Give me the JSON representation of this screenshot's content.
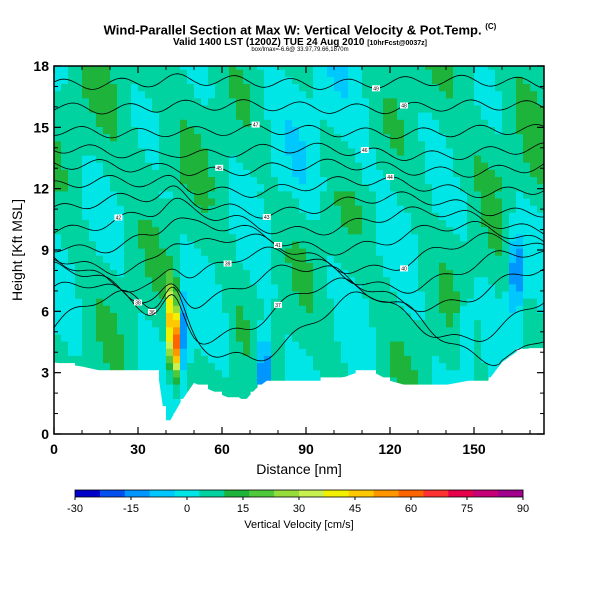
{
  "header": {
    "title": "Wind-Parallel Section at Max W: Vertical Velocity & Pot.Temp.",
    "copyright": "(C)",
    "subtitle": "Valid 1400 LST (1200Z) TUE 24 Aug 2010",
    "subtitle_note": "[10hrFcst@0037z]",
    "subsubtitle": "box/lmax=-6.6@ 33.97,79.66,1870m"
  },
  "chart_data": {
    "type": "heatmap",
    "title": "Wind-Parallel Section at Max W: Vertical Velocity & Pot.Temp.",
    "xlabel": "Distance [nm]",
    "ylabel": "Height [Kft MSL]",
    "xlim": [
      0,
      175
    ],
    "ylim": [
      0,
      18
    ],
    "xticks": [
      0,
      30,
      60,
      90,
      120,
      150
    ],
    "xtick_labels": [
      "0",
      "30",
      "60",
      "90",
      "120",
      "150"
    ],
    "yticks": [
      0,
      3,
      6,
      9,
      12,
      15,
      18
    ],
    "ytick_labels": [
      "0",
      "3",
      "6",
      "9",
      "12",
      "15",
      "18"
    ],
    "colorbar": {
      "label": "Vertical Velocity [cm/s]",
      "ticks": [
        -30,
        -15,
        0,
        15,
        30,
        45,
        60,
        75,
        90
      ],
      "tick_labels": [
        "-30",
        "-15",
        "0",
        "15",
        "30",
        "45",
        "60",
        "75",
        "90"
      ],
      "colors": [
        "#0000c8",
        "#0050f0",
        "#0096ff",
        "#00c8ff",
        "#00e6e6",
        "#00d2a0",
        "#1eb43c",
        "#50c83c",
        "#96dc3c",
        "#c8f050",
        "#f0f000",
        "#ffc800",
        "#ff9600",
        "#ff6400",
        "#ff3232",
        "#e6004b",
        "#c80078",
        "#a0008c"
      ]
    },
    "terrain_height_kft": [
      [
        0,
        3.5
      ],
      [
        10,
        3.3
      ],
      [
        20,
        3.0
      ],
      [
        30,
        3.0
      ],
      [
        37,
        3.1
      ],
      [
        40,
        0.3
      ],
      [
        45,
        1.5
      ],
      [
        50,
        2.5
      ],
      [
        55,
        2.2
      ],
      [
        62,
        1.8
      ],
      [
        66,
        1.8
      ],
      [
        68,
        1.6
      ],
      [
        72,
        2.2
      ],
      [
        76,
        2.6
      ],
      [
        82,
        2.6
      ],
      [
        88,
        2.6
      ],
      [
        95,
        2.6
      ],
      [
        104,
        2.8
      ],
      [
        108,
        3.0
      ],
      [
        113,
        3.1
      ],
      [
        120,
        2.6
      ],
      [
        128,
        2.3
      ],
      [
        134,
        2.3
      ],
      [
        140,
        2.4
      ],
      [
        148,
        2.6
      ],
      [
        155,
        2.6
      ],
      [
        160,
        3.5
      ],
      [
        165,
        4.0
      ],
      [
        170,
        4.2
      ],
      [
        175,
        4.2
      ]
    ],
    "updraft_maxima": [
      {
        "x_nm": 43,
        "z_kft": 4.5,
        "w_cms": 80
      },
      {
        "x_nm": 42,
        "z_kft": 6.2,
        "w_cms": 40
      },
      {
        "x_nm": 65,
        "z_kft": 5.3,
        "w_cms": 10
      }
    ],
    "downdraft_minima": [
      {
        "x_nm": 75,
        "z_kft": 3.0,
        "w_cms": -25
      },
      {
        "x_nm": 46,
        "z_kft": 5.0,
        "w_cms": -15
      },
      {
        "x_nm": 165,
        "z_kft": 8.0,
        "w_cms": -20
      },
      {
        "x_nm": 147,
        "z_kft": 4.5,
        "w_cms": -8
      }
    ],
    "theta_contours": [
      {
        "label": "36",
        "base_kft": 5.2,
        "amp": 1.6,
        "label_x": 35
      },
      {
        "label": "37",
        "base_kft": 6.0,
        "amp": 1.4,
        "label_x": 80
      },
      {
        "label": "38",
        "base_kft": 7.2,
        "amp": 1.0,
        "label_x": 30
      },
      {
        "label": "39",
        "base_kft": 8.0,
        "amp": 0.9,
        "label_x": 62
      },
      {
        "label": "40",
        "base_kft": 8.8,
        "amp": 0.8,
        "label_x": 125
      },
      {
        "label": "41",
        "base_kft": 9.6,
        "amp": 0.6,
        "label_x": 80
      },
      {
        "label": "42",
        "base_kft": 10.4,
        "amp": 0.5,
        "label_x": 23
      },
      {
        "label": "43",
        "base_kft": 11.2,
        "amp": 0.4,
        "label_x": 76
      },
      {
        "label": "44",
        "base_kft": 12.1,
        "amp": 0.3,
        "label_x": 120
      },
      {
        "label": "45",
        "base_kft": 13.0,
        "amp": 0.2,
        "label_x": 59
      },
      {
        "label": "46",
        "base_kft": 13.8,
        "amp": 0.2,
        "label_x": 111
      },
      {
        "label": "47",
        "base_kft": 14.8,
        "amp": 0.1,
        "label_x": 72
      },
      {
        "label": "48",
        "base_kft": 16.0,
        "amp": 0.1,
        "label_x": 125
      },
      {
        "label": "49",
        "base_kft": 17.2,
        "amp": 0.1,
        "label_x": 115
      }
    ]
  }
}
